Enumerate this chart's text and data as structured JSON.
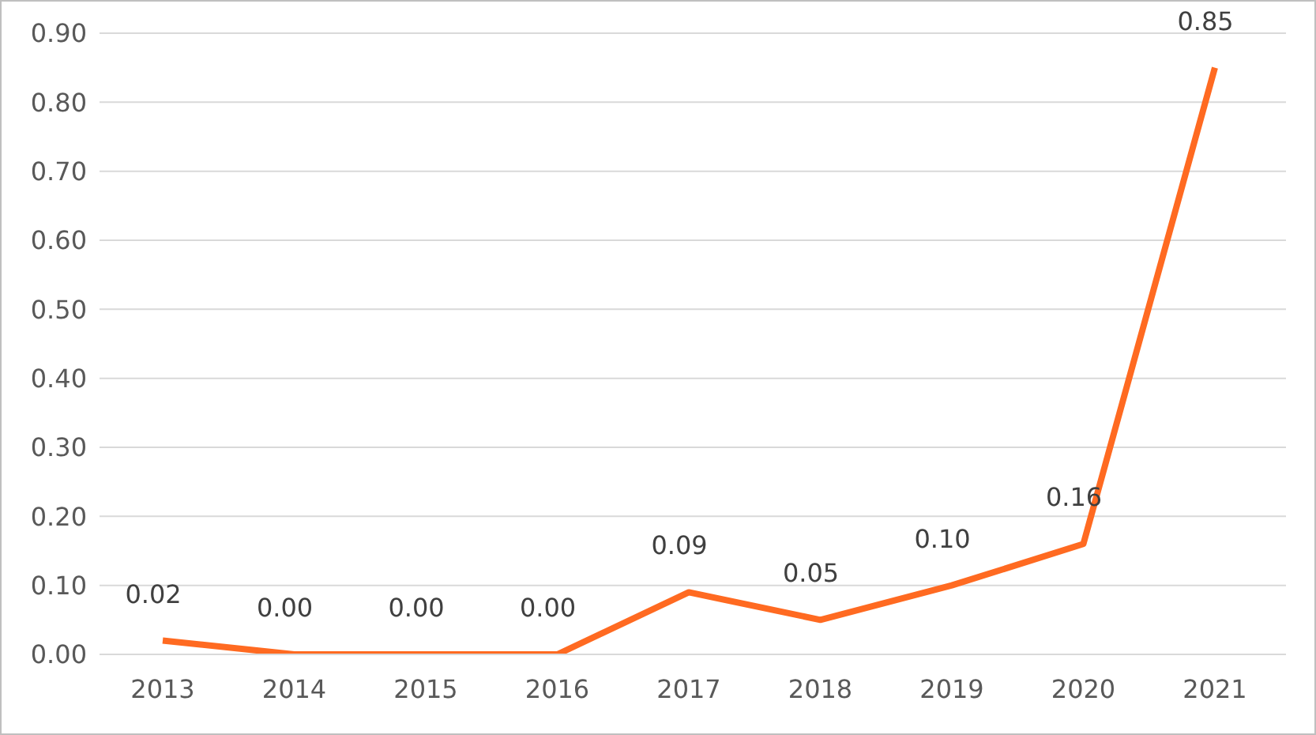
{
  "chart_data": {
    "type": "line",
    "categories": [
      "2013",
      "2014",
      "2015",
      "2016",
      "2017",
      "2018",
      "2019",
      "2020",
      "2021"
    ],
    "values": [
      0.02,
      0.0,
      0.0,
      0.0,
      0.09,
      0.05,
      0.1,
      0.16,
      0.85
    ],
    "value_labels": [
      "0.02",
      "0.00",
      "0.00",
      "0.00",
      "0.09",
      "0.05",
      "0.10",
      "0.16",
      "0.85"
    ],
    "color": "#ff6a21",
    "ylim": [
      0,
      0.9
    ],
    "yticks": [
      {
        "value": 0,
        "label": "0.00"
      },
      {
        "value": 0.1,
        "label": "0.10"
      },
      {
        "value": 0.2,
        "label": "0.20"
      },
      {
        "value": 0.3,
        "label": "0.30"
      },
      {
        "value": 0.4,
        "label": "0.40"
      },
      {
        "value": 0.5,
        "label": "0.50"
      },
      {
        "value": 0.6,
        "label": "0.60"
      },
      {
        "value": 0.7,
        "label": "0.70"
      },
      {
        "value": 0.8,
        "label": "0.80"
      },
      {
        "value": 0.9,
        "label": "0.90"
      }
    ],
    "grid": "y",
    "marker": "none",
    "line_style": "solid"
  }
}
